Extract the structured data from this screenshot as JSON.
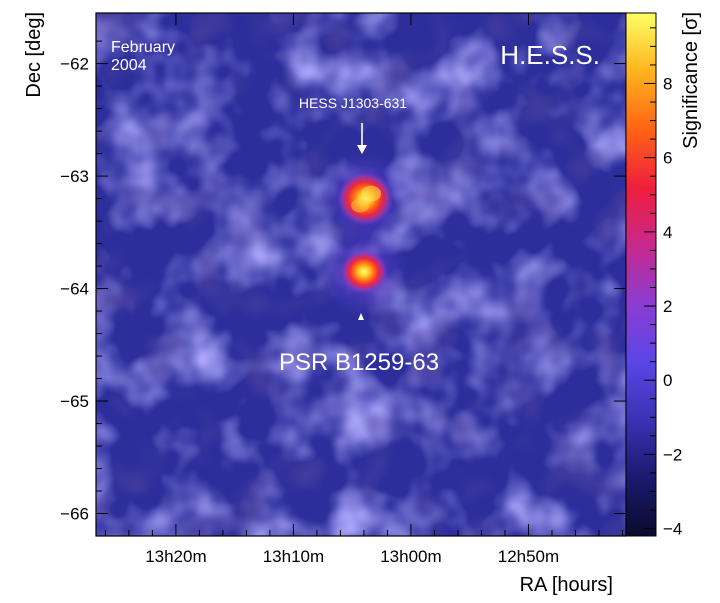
{
  "chart_data": {
    "type": "heatmap",
    "title": "",
    "xlabel": "RA [hours]",
    "ylabel": "Dec [deg]",
    "colorbar_label": "Significance [σ]",
    "colorbar_range": [
      -4.2,
      9.9
    ],
    "colorbar_ticks": [
      -4,
      -2,
      0,
      2,
      4,
      6,
      8
    ],
    "colormap": [
      "#0a0a2e",
      "#1a1a6e",
      "#3a32b4",
      "#5a46e6",
      "#8c3cd2",
      "#c8288c",
      "#f01e3c",
      "#ff6414",
      "#ffb41e",
      "#ffff64"
    ],
    "x_ticks": [
      "13h20m",
      "13h10m",
      "13h00m",
      "12h50m"
    ],
    "x_tick_minutes": [
      20,
      10,
      0,
      -10
    ],
    "x_range_minutes": [
      26.8,
      -18.3
    ],
    "y_ticks": [
      -62,
      -63,
      -64,
      -65,
      -66
    ],
    "y_range_deg": [
      -66.2,
      -61.55
    ],
    "sources": [
      {
        "name": "HESS J1303-631",
        "ra_minutes": 3.9,
        "dec": -63.2,
        "peak_sigma": 9.0
      },
      {
        "name": "PSR B1259-63",
        "ra_minutes": 4.0,
        "dec": -63.85,
        "peak_sigma": 9.5
      }
    ],
    "annotations": {
      "date": "February\n2004",
      "experiment": "H.E.S.S.",
      "arrow_label": "HESS J1303-631",
      "marker_label": "PSR B1259-63"
    }
  }
}
